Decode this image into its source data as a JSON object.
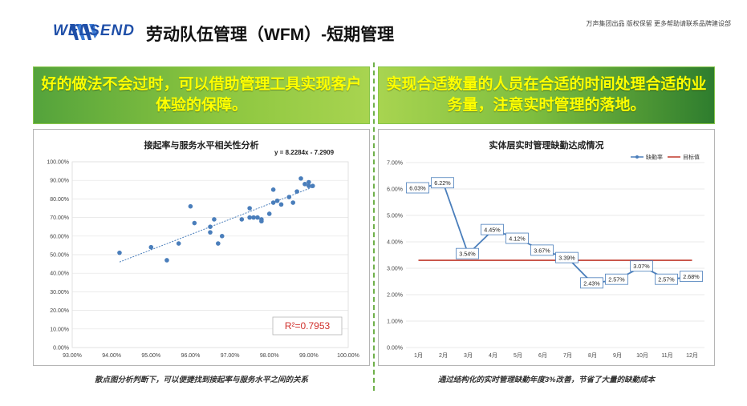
{
  "header": {
    "brand": "WELSEND",
    "title": "劳动队伍管理（WFM）-短期管理",
    "note": "万声集团出品  版权保留  更多帮助请联系品牌建设部"
  },
  "banners": {
    "left": "好的做法不会过时，可以借助管理工具实现客户体验的保障。",
    "right": "实现合适数量的人员在合适的时间处理合适的业务量，注意实时管理的落地。"
  },
  "captions": {
    "left": "散点图分析判断下，可以便捷找到接起率与服务水平之间的关系",
    "right": "通过结构化的实时管理缺勤年度3%改善，节省了大量的缺勤成本"
  },
  "colors": {
    "accent": "#8cc63f",
    "highlight": "#ffff00",
    "series": "#4a7ebb",
    "target": "#c0392b"
  },
  "chart_data": [
    {
      "type": "scatter",
      "title": "接起率与服务水平相关性分析",
      "equation": "y = 8.2284x - 7.2909",
      "r2": "R²=0.7953",
      "xlim": [
        0.93,
        1.0
      ],
      "ylim": [
        0.0,
        1.0
      ],
      "x_ticks": [
        "93.00%",
        "94.00%",
        "95.00%",
        "96.00%",
        "97.00%",
        "98.00%",
        "99.00%",
        "100.00%"
      ],
      "y_ticks": [
        "0.00%",
        "10.00%",
        "20.00%",
        "30.00%",
        "40.00%",
        "50.00%",
        "60.00%",
        "70.00%",
        "80.00%",
        "90.00%",
        "100.00%"
      ],
      "trendline": {
        "slope": 8.2284,
        "intercept": -7.2909,
        "x_range": [
          0.942,
          0.991
        ]
      },
      "points": [
        [
          0.942,
          0.51
        ],
        [
          0.95,
          0.54
        ],
        [
          0.954,
          0.47
        ],
        [
          0.957,
          0.56
        ],
        [
          0.96,
          0.76
        ],
        [
          0.961,
          0.67
        ],
        [
          0.965,
          0.65
        ],
        [
          0.965,
          0.62
        ],
        [
          0.966,
          0.69
        ],
        [
          0.967,
          0.56
        ],
        [
          0.968,
          0.6
        ],
        [
          0.973,
          0.69
        ],
        [
          0.975,
          0.7
        ],
        [
          0.975,
          0.75
        ],
        [
          0.976,
          0.7
        ],
        [
          0.977,
          0.7
        ],
        [
          0.978,
          0.69
        ],
        [
          0.978,
          0.68
        ],
        [
          0.98,
          0.72
        ],
        [
          0.981,
          0.78
        ],
        [
          0.982,
          0.79
        ],
        [
          0.981,
          0.85
        ],
        [
          0.983,
          0.77
        ],
        [
          0.985,
          0.81
        ],
        [
          0.986,
          0.78
        ],
        [
          0.987,
          0.84
        ],
        [
          0.988,
          0.91
        ],
        [
          0.989,
          0.88
        ],
        [
          0.99,
          0.89
        ],
        [
          0.99,
          0.87
        ],
        [
          0.991,
          0.87
        ]
      ]
    },
    {
      "type": "line",
      "title": "实体层实时管理缺勤达成情况",
      "categories": [
        "1月",
        "2月",
        "3月",
        "4月",
        "5月",
        "6月",
        "7月",
        "8月",
        "9月",
        "10月",
        "11月",
        "12月"
      ],
      "ylim": [
        0.0,
        0.07
      ],
      "y_ticks": [
        "0.00%",
        "1.00%",
        "2.00%",
        "3.00%",
        "4.00%",
        "5.00%",
        "6.00%",
        "7.00%"
      ],
      "series": [
        {
          "name": "缺勤率",
          "values": [
            0.0603,
            0.0622,
            0.0354,
            0.0445,
            0.0412,
            0.0367,
            0.0339,
            0.0243,
            0.0257,
            0.0307,
            0.0257,
            0.0268
          ],
          "labels": [
            "6.03%",
            "6.22%",
            "3.54%",
            "4.45%",
            "4.12%",
            "3.67%",
            "3.39%",
            "2.43%",
            "2.57%",
            "3.07%",
            "2.57%",
            "2.68%"
          ]
        },
        {
          "name": "目标值",
          "values": [
            0.033,
            0.033,
            0.033,
            0.033,
            0.033,
            0.033,
            0.033,
            0.033,
            0.033,
            0.033,
            0.033,
            0.033
          ]
        }
      ],
      "legend": "top-right"
    }
  ]
}
